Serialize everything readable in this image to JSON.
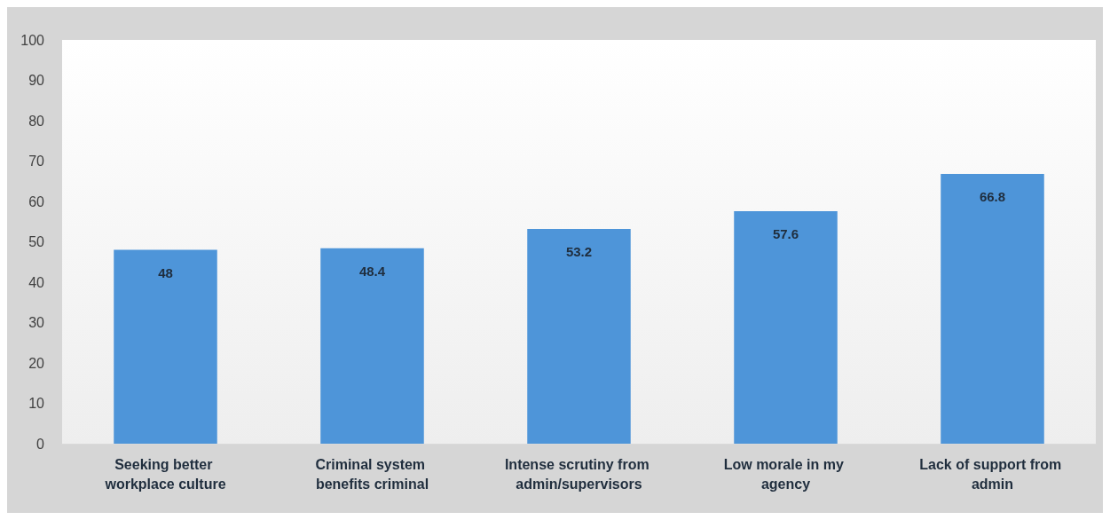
{
  "chart_data": {
    "type": "bar",
    "categories": [
      "Seeking better workplace culture",
      "Criminal system benefits criminal",
      "Intense scrutiny from admin/supervisors",
      "Low morale in my agency",
      "Lack of support from admin"
    ],
    "values": [
      48,
      48.4,
      53.2,
      57.6,
      66.8
    ],
    "color": "#4e95d9",
    "ylim": [
      0,
      100
    ],
    "yticks": [
      0,
      10,
      20,
      30,
      40,
      50,
      60,
      70,
      80,
      90,
      100
    ],
    "grid": false,
    "data_labels": true
  }
}
